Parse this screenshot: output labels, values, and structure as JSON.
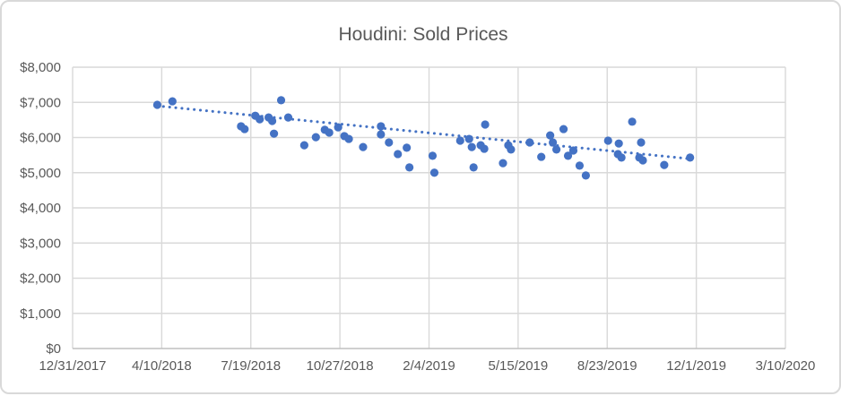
{
  "colors": {
    "marker": "#4472C4",
    "trendline": "#4472C4",
    "gridline": "#D9D9D9",
    "axis_line": "#BFBFBF",
    "text": "#595959",
    "frame_border": "#D9D9D9",
    "background": "#FFFFFF"
  },
  "chart_data": {
    "type": "scatter",
    "title": "Houdini: Sold Prices",
    "xlabel": "",
    "ylabel": "",
    "grid": true,
    "legend": "none",
    "x_axis": {
      "min": "12/31/2017",
      "max": "3/10/2020",
      "tick_labels": [
        "12/31/2017",
        "4/10/2018",
        "7/19/2018",
        "10/27/2018",
        "2/4/2019",
        "5/15/2019",
        "8/23/2019",
        "12/1/2019",
        "3/10/2020"
      ]
    },
    "y_axis": {
      "min": 0,
      "max": 8000,
      "step": 1000,
      "tick_values": [
        0,
        1000,
        2000,
        3000,
        4000,
        5000,
        6000,
        7000,
        8000
      ],
      "tick_labels": [
        "$0",
        "$1,000",
        "$2,000",
        "$3,000",
        "$4,000",
        "$5,000",
        "$6,000",
        "$7,000",
        "$8,000"
      ]
    },
    "series": [
      {
        "name": "Sold Prices",
        "marker": "circle",
        "marker_color": "#4472C4",
        "points": [
          {
            "date": "4/5/2018",
            "price": 6930
          },
          {
            "date": "4/22/2018",
            "price": 7030
          },
          {
            "date": "7/8/2018",
            "price": 6320
          },
          {
            "date": "7/12/2018",
            "price": 6240
          },
          {
            "date": "7/24/2018",
            "price": 6620
          },
          {
            "date": "7/29/2018",
            "price": 6520
          },
          {
            "date": "8/8/2018",
            "price": 6570
          },
          {
            "date": "8/12/2018",
            "price": 6470
          },
          {
            "date": "8/14/2018",
            "price": 6110
          },
          {
            "date": "8/22/2018",
            "price": 7060
          },
          {
            "date": "8/30/2018",
            "price": 6570
          },
          {
            "date": "9/17/2018",
            "price": 5780
          },
          {
            "date": "9/30/2018",
            "price": 6010
          },
          {
            "date": "10/10/2018",
            "price": 6220
          },
          {
            "date": "10/15/2018",
            "price": 6140
          },
          {
            "date": "10/25/2018",
            "price": 6290
          },
          {
            "date": "11/1/2018",
            "price": 6040
          },
          {
            "date": "11/6/2018",
            "price": 5960
          },
          {
            "date": "11/22/2018",
            "price": 5730
          },
          {
            "date": "12/12/2018",
            "price": 6320
          },
          {
            "date": "12/12/2018",
            "price": 6090
          },
          {
            "date": "12/21/2018",
            "price": 5860
          },
          {
            "date": "12/31/2018",
            "price": 5530
          },
          {
            "date": "1/10/2019",
            "price": 5710
          },
          {
            "date": "1/13/2019",
            "price": 5150
          },
          {
            "date": "2/8/2019",
            "price": 5480
          },
          {
            "date": "2/10/2019",
            "price": 5000
          },
          {
            "date": "3/11/2019",
            "price": 5910
          },
          {
            "date": "3/21/2019",
            "price": 5960
          },
          {
            "date": "3/24/2019",
            "price": 5730
          },
          {
            "date": "3/26/2019",
            "price": 5150
          },
          {
            "date": "4/3/2019",
            "price": 5780
          },
          {
            "date": "4/7/2019",
            "price": 5680
          },
          {
            "date": "4/8/2019",
            "price": 6370
          },
          {
            "date": "4/28/2019",
            "price": 5270
          },
          {
            "date": "5/4/2019",
            "price": 5780
          },
          {
            "date": "5/7/2019",
            "price": 5660
          },
          {
            "date": "5/28/2019",
            "price": 5860
          },
          {
            "date": "6/10/2019",
            "price": 5450
          },
          {
            "date": "6/20/2019",
            "price": 6060
          },
          {
            "date": "6/23/2019",
            "price": 5860
          },
          {
            "date": "6/27/2019",
            "price": 5660
          },
          {
            "date": "7/5/2019",
            "price": 6240
          },
          {
            "date": "7/10/2019",
            "price": 5480
          },
          {
            "date": "7/16/2019",
            "price": 5630
          },
          {
            "date": "7/23/2019",
            "price": 5200
          },
          {
            "date": "7/30/2019",
            "price": 4920
          },
          {
            "date": "8/24/2019",
            "price": 5910
          },
          {
            "date": "9/4/2019",
            "price": 5530
          },
          {
            "date": "9/5/2019",
            "price": 5830
          },
          {
            "date": "9/8/2019",
            "price": 5430
          },
          {
            "date": "9/20/2019",
            "price": 6450
          },
          {
            "date": "9/28/2019",
            "price": 5430
          },
          {
            "date": "9/30/2019",
            "price": 5860
          },
          {
            "date": "10/2/2019",
            "price": 5350
          },
          {
            "date": "10/26/2019",
            "price": 5220
          },
          {
            "date": "11/24/2019",
            "price": 5430
          }
        ]
      }
    ],
    "trendline": {
      "style": "dotted",
      "color": "#4472C4",
      "start": {
        "date": "4/5/2018",
        "price": 6900
      },
      "end": {
        "date": "11/26/2019",
        "price": 5390
      }
    }
  }
}
